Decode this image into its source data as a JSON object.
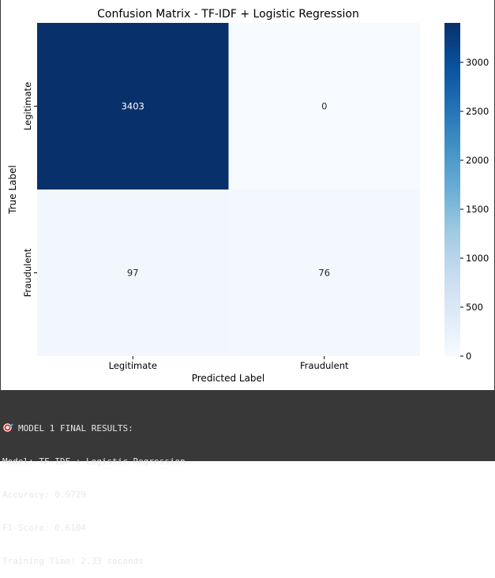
{
  "chart_data": {
    "type": "heatmap",
    "title": "Confusion Matrix - TF-IDF + Logistic Regression",
    "xlabel": "Predicted Label",
    "ylabel": "True Label",
    "x_categories": [
      "Legitimate",
      "Fraudulent"
    ],
    "y_categories": [
      "Legitimate",
      "Fraudulent"
    ],
    "values": [
      [
        3403,
        0
      ],
      [
        97,
        76
      ]
    ],
    "colormap": "Blues",
    "colorbar": {
      "min": 0,
      "max": 3403,
      "ticks": [
        0,
        500,
        1000,
        1500,
        2000,
        2500,
        3000
      ]
    },
    "grid": false
  },
  "output": {
    "icon": "dart-icon",
    "heading": "MODEL 1 FINAL RESULTS:",
    "lines": [
      "Model: TF-IDF + Logistic Regression",
      "Accuracy: 0.9729",
      "F1-Score: 0.6104",
      "Training Time: 2.33 seconds"
    ]
  },
  "colors": {
    "output_background": "#383838",
    "output_text": "#e8e8e8",
    "cell_high": "#08306b",
    "cell_low": "#f7fbff"
  }
}
